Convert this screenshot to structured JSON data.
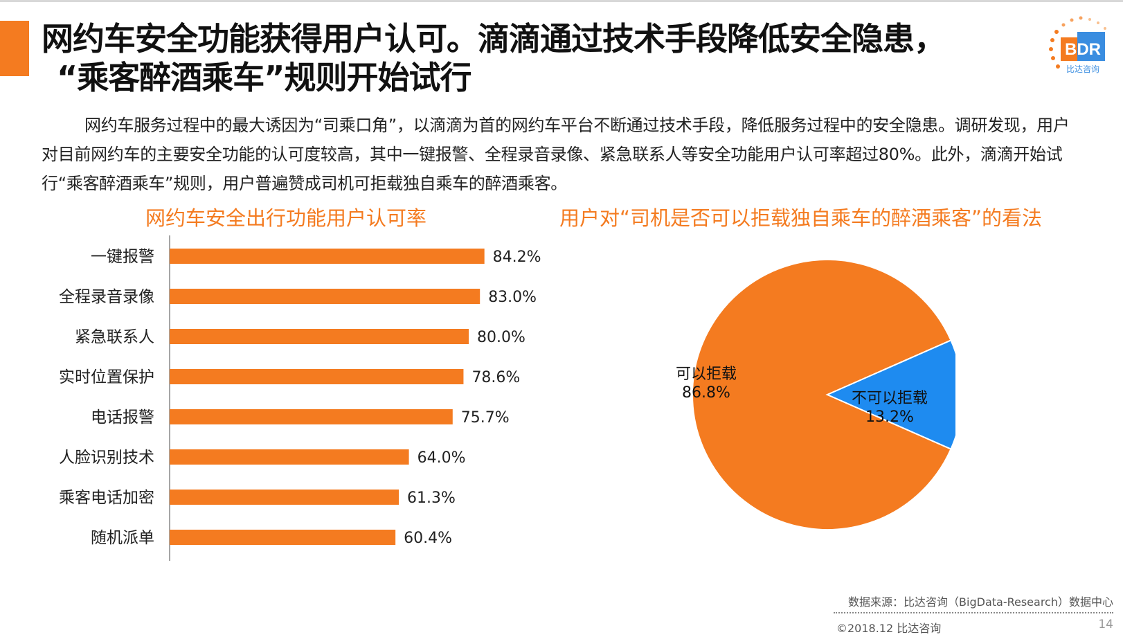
{
  "header": {
    "title_line1": "网约车安全功能获得用户认可。滴滴通过技术手段降低安全隐患，",
    "title_line2": "“乘客醉酒乘车”规则开始试行",
    "intro": "网约车服务过程中的最大诱因为“司乘口角”，以滴滴为首的网约车平台不断通过技术手段，降低服务过程中的安全隐患。调研发现，用户对目前网约车的主要安全功能的认可度较高，其中一键报警、全程录音录像、紧急联系人等安全功能用户认可率超过80%。此外，滴滴开始试行“乘客醉酒乘车”规则，用户普遍赞成司机可拒载独自乘车的醉酒乘客。"
  },
  "logo": {
    "letters": "BDR",
    "subtitle": "比达咨询"
  },
  "colors": {
    "accent": "#f47b20",
    "blue": "#1e8bf0"
  },
  "chart_data": [
    {
      "type": "bar",
      "orientation": "horizontal",
      "title": "网约车安全出行功能用户认可率",
      "categories": [
        "一键报警",
        "全程录音录像",
        "紧急联系人",
        "实时位置保护",
        "电话报警",
        "人脸识别技术",
        "乘客电话加密",
        "随机派单"
      ],
      "values": [
        84.2,
        83.0,
        80.0,
        78.6,
        75.7,
        64.0,
        61.3,
        60.4
      ],
      "value_labels": [
        "84.2%",
        "83.0%",
        "80.0%",
        "78.6%",
        "75.7%",
        "64.0%",
        "61.3%",
        "60.4%"
      ],
      "xlim": [
        0,
        100
      ],
      "unit": "%",
      "color": "#f47b20"
    },
    {
      "type": "pie",
      "title": "用户对“司机是否可以拒载独自乘车的醉酒乘客”的看法",
      "labels": [
        "可以拒载",
        "不可以拒载"
      ],
      "values": [
        86.8,
        13.2
      ],
      "value_labels": [
        "86.8%",
        "13.2%"
      ],
      "colors": [
        "#f47b20",
        "#1e8bf0"
      ]
    }
  ],
  "footer": {
    "source": "数据来源：比达咨询（BigData-Research）数据中心",
    "copyright": "©2018.12 比达咨询",
    "page": "14"
  }
}
